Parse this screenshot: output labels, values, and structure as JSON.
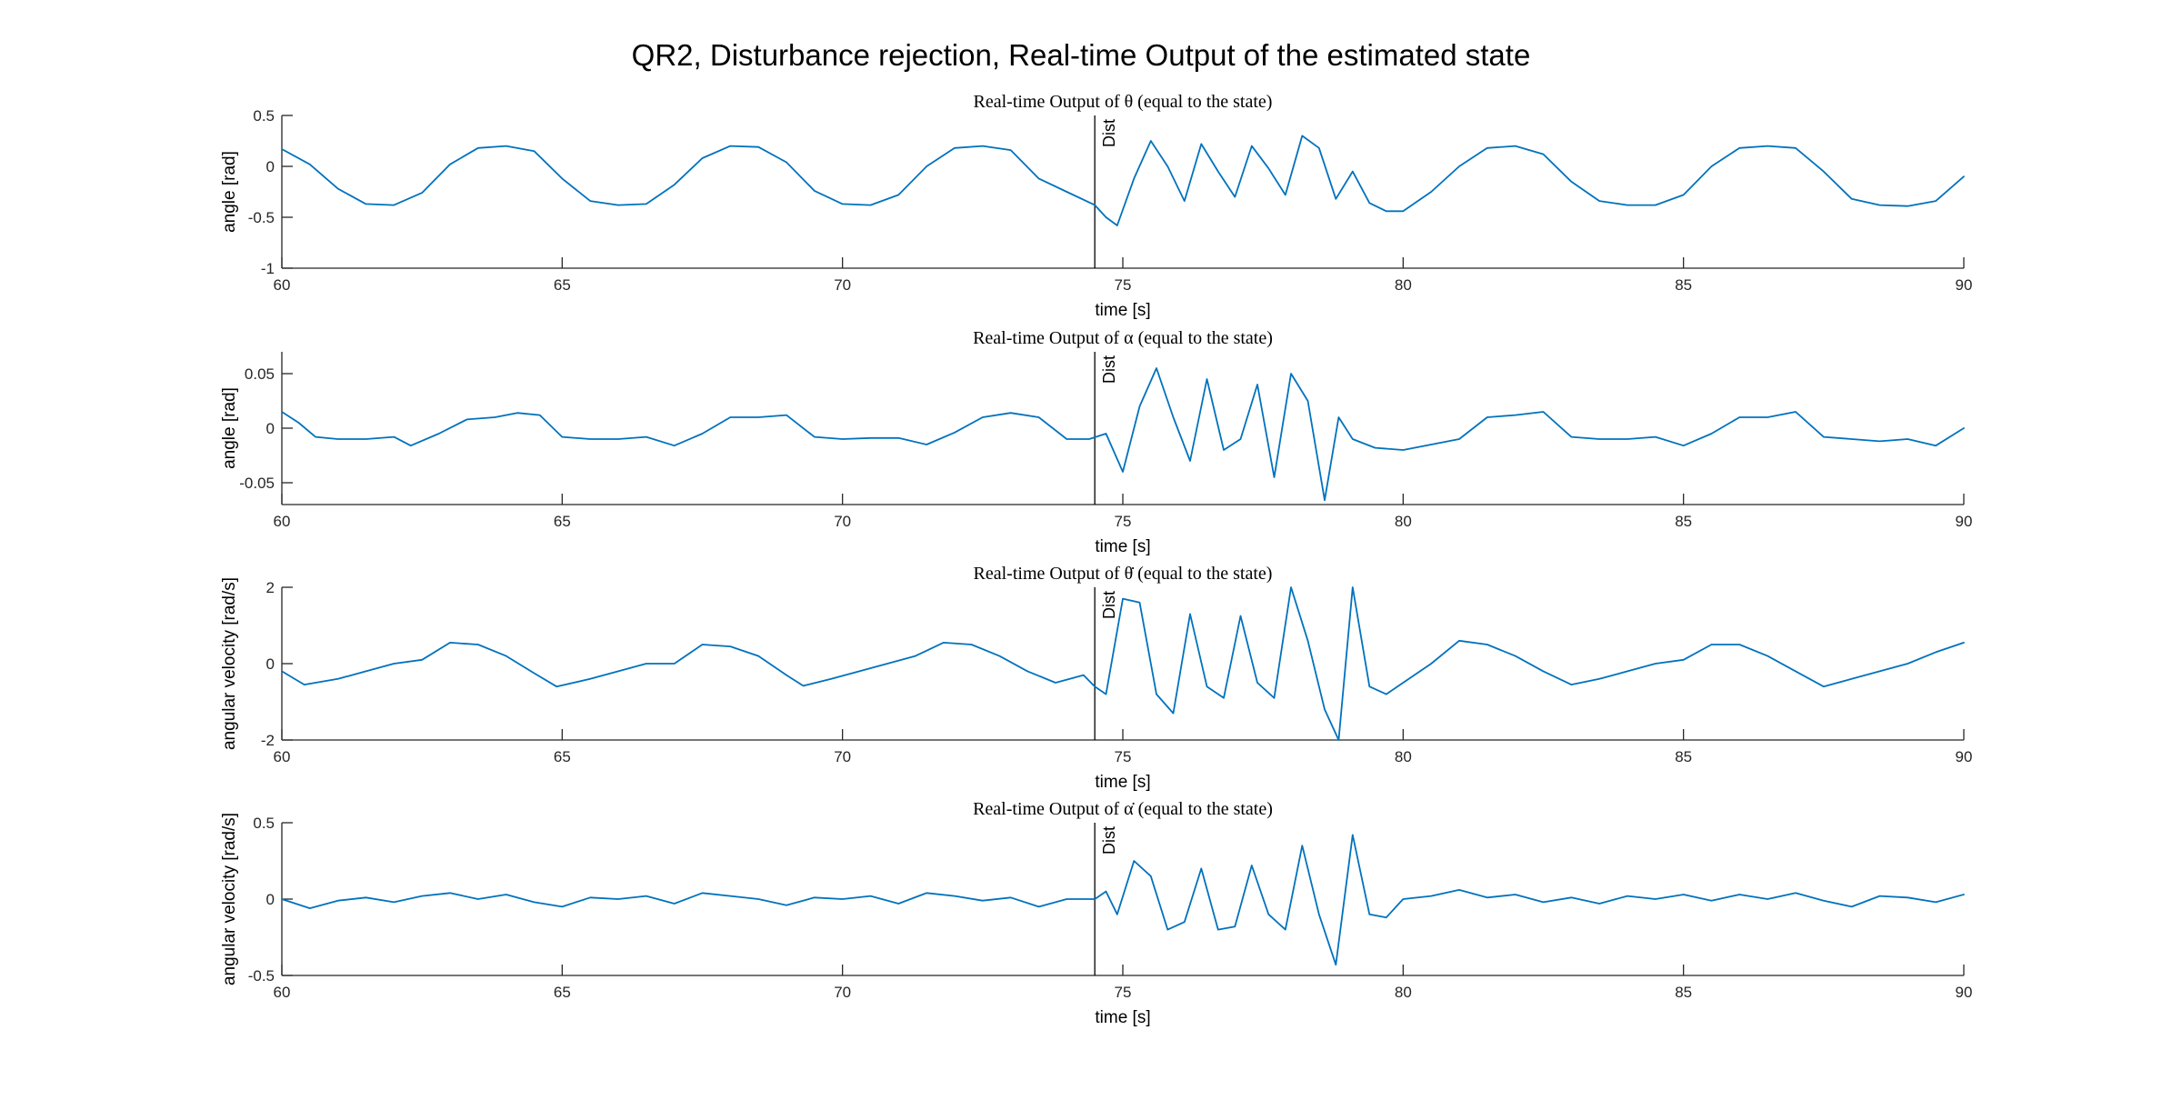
{
  "figure_title": "QR2, Disturbance rejection, Real-time Output of the estimated state",
  "colors": {
    "line": "#0072BD",
    "axis": "#262626",
    "marker": "#000000"
  },
  "chart_data": [
    {
      "type": "line",
      "title": "Real-time Output of θ (equal to the state)",
      "xlabel": "time [s]",
      "ylabel": "angle [rad]",
      "xlim": [
        60,
        90
      ],
      "ylim": [
        -1,
        0.5
      ],
      "xticks": [
        60,
        65,
        70,
        75,
        80,
        85,
        90
      ],
      "yticks": [
        -1,
        -0.5,
        0,
        0.5
      ],
      "ytick_labels": [
        "-1",
        "-0.5",
        "0",
        "0.5"
      ],
      "annotation": {
        "text": "Dist",
        "x": 74.5
      },
      "series": [
        {
          "x": [
            60,
            60.5,
            61,
            61.5,
            62,
            62.5,
            63,
            63.5,
            64,
            64.5,
            65,
            65.5,
            66,
            66.5,
            67,
            67.5,
            68,
            68.5,
            69,
            69.5,
            70,
            70.5,
            71,
            71.5,
            72,
            72.5,
            73,
            73.5,
            74,
            74.5,
            74.7,
            74.9,
            75.2,
            75.5,
            75.8,
            76.1,
            76.4,
            76.7,
            77,
            77.3,
            77.6,
            77.9,
            78.2,
            78.5,
            78.8,
            79.1,
            79.4,
            79.7,
            80,
            80.5,
            81,
            81.5,
            82,
            82.5,
            83,
            83.5,
            84,
            84.5,
            85,
            85.5,
            86,
            86.5,
            87,
            87.5,
            88,
            88.5,
            89,
            89.5,
            90
          ],
          "y": [
            0.17,
            0.02,
            -0.22,
            -0.37,
            -0.38,
            -0.26,
            0.02,
            0.18,
            0.2,
            0.15,
            -0.12,
            -0.34,
            -0.38,
            -0.37,
            -0.18,
            0.08,
            0.2,
            0.19,
            0.04,
            -0.24,
            -0.37,
            -0.38,
            -0.28,
            0.0,
            0.18,
            0.2,
            0.16,
            -0.12,
            -0.25,
            -0.38,
            -0.5,
            -0.58,
            -0.12,
            0.25,
            0.0,
            -0.34,
            0.22,
            -0.05,
            -0.3,
            0.2,
            -0.02,
            -0.28,
            0.3,
            0.18,
            -0.32,
            -0.05,
            -0.36,
            -0.44,
            -0.44,
            -0.25,
            0.0,
            0.18,
            0.2,
            0.12,
            -0.15,
            -0.34,
            -0.38,
            -0.38,
            -0.28,
            0.0,
            0.18,
            0.2,
            0.18,
            -0.05,
            -0.32,
            -0.38,
            -0.39,
            -0.34,
            -0.1
          ]
        }
      ]
    },
    {
      "type": "line",
      "title": "Real-time Output of α (equal to the state)",
      "xlabel": "time [s]",
      "ylabel": "angle [rad]",
      "xlim": [
        60,
        90
      ],
      "ylim": [
        -0.07,
        0.07
      ],
      "xticks": [
        60,
        65,
        70,
        75,
        80,
        85,
        90
      ],
      "yticks": [
        -0.05,
        0,
        0.05
      ],
      "ytick_labels": [
        "-0.05",
        "0",
        "0.05"
      ],
      "annotation": {
        "text": "Dist",
        "x": 74.5
      },
      "series": [
        {
          "x": [
            60,
            60.3,
            60.6,
            61,
            61.5,
            62,
            62.3,
            62.8,
            63.3,
            63.8,
            64.2,
            64.6,
            65,
            65.5,
            66,
            66.5,
            67,
            67.5,
            68,
            68.5,
            69,
            69.5,
            70,
            70.5,
            71,
            71.5,
            72,
            72.5,
            73,
            73.5,
            74,
            74.4,
            74.7,
            75,
            75.3,
            75.6,
            75.9,
            76.2,
            76.5,
            76.8,
            77.1,
            77.4,
            77.7,
            78,
            78.3,
            78.6,
            78.85,
            79.1,
            79.5,
            80,
            80.5,
            81,
            81.5,
            82,
            82.5,
            83,
            83.5,
            84,
            84.5,
            85,
            85.5,
            86,
            86.5,
            87,
            87.5,
            88,
            88.5,
            89,
            89.5,
            90
          ],
          "y": [
            0.015,
            0.005,
            -0.008,
            -0.01,
            -0.01,
            -0.008,
            -0.016,
            -0.005,
            0.008,
            0.01,
            0.014,
            0.012,
            -0.008,
            -0.01,
            -0.01,
            -0.008,
            -0.016,
            -0.005,
            0.01,
            0.01,
            0.012,
            -0.008,
            -0.01,
            -0.009,
            -0.009,
            -0.015,
            -0.004,
            0.01,
            0.014,
            0.01,
            -0.01,
            -0.01,
            -0.005,
            -0.04,
            0.02,
            0.055,
            0.01,
            -0.03,
            0.045,
            -0.02,
            -0.01,
            0.04,
            -0.045,
            0.05,
            0.025,
            -0.066,
            0.01,
            -0.01,
            -0.018,
            -0.02,
            -0.015,
            -0.01,
            0.01,
            0.012,
            0.015,
            -0.008,
            -0.01,
            -0.01,
            -0.008,
            -0.016,
            -0.005,
            0.01,
            0.01,
            0.015,
            -0.008,
            -0.01,
            -0.012,
            -0.01,
            -0.016,
            0.0
          ]
        }
      ]
    },
    {
      "type": "line",
      "title": "Real-time Output of θ̇ (equal to the state)",
      "xlabel": "time [s]",
      "ylabel": "angular velocity [rad/s]",
      "xlim": [
        60,
        90
      ],
      "ylim": [
        -2,
        2
      ],
      "xticks": [
        60,
        65,
        70,
        75,
        80,
        85,
        90
      ],
      "yticks": [
        -2,
        0,
        2
      ],
      "ytick_labels": [
        "-2",
        "0",
        "2"
      ],
      "annotation": {
        "text": "Dist",
        "x": 74.5
      },
      "series": [
        {
          "x": [
            60,
            60.4,
            61,
            61.5,
            62,
            62.5,
            63,
            63.5,
            64,
            64.5,
            64.9,
            65.5,
            66,
            66.5,
            67,
            67.5,
            68,
            68.5,
            69,
            69.3,
            69.8,
            70.3,
            70.8,
            71.3,
            71.8,
            72.3,
            72.8,
            73.3,
            73.8,
            74.3,
            74.5,
            74.7,
            75,
            75.3,
            75.6,
            75.9,
            76.2,
            76.5,
            76.8,
            77.1,
            77.4,
            77.7,
            78,
            78.3,
            78.6,
            78.85,
            79.1,
            79.4,
            79.7,
            80,
            80.5,
            81,
            81.5,
            82,
            82.5,
            83,
            83.5,
            84,
            84.5,
            85,
            85.5,
            86,
            86.5,
            87,
            87.5,
            88,
            88.5,
            89,
            89.5,
            90
          ],
          "y": [
            -0.2,
            -0.55,
            -0.4,
            -0.2,
            0.0,
            0.1,
            0.55,
            0.5,
            0.2,
            -0.25,
            -0.6,
            -0.4,
            -0.2,
            0.0,
            0.0,
            0.5,
            0.45,
            0.2,
            -0.3,
            -0.58,
            -0.4,
            -0.2,
            0.0,
            0.2,
            0.55,
            0.5,
            0.2,
            -0.2,
            -0.5,
            -0.3,
            -0.6,
            -0.8,
            1.7,
            1.6,
            -0.8,
            -1.3,
            1.3,
            -0.6,
            -0.9,
            1.25,
            -0.5,
            -0.9,
            2.0,
            0.6,
            -1.2,
            -2.0,
            2.0,
            -0.6,
            -0.8,
            -0.5,
            0.0,
            0.6,
            0.5,
            0.2,
            -0.2,
            -0.55,
            -0.4,
            -0.2,
            0.0,
            0.1,
            0.5,
            0.5,
            0.2,
            -0.2,
            -0.6,
            -0.4,
            -0.2,
            0.0,
            0.3,
            0.55
          ]
        }
      ]
    },
    {
      "type": "line",
      "title": "Real-time Output of α̇ (equal to the state)",
      "xlabel": "time [s]",
      "ylabel": "angular velocity [rad/s]",
      "xlim": [
        60,
        90
      ],
      "ylim": [
        -0.5,
        0.5
      ],
      "xticks": [
        60,
        65,
        70,
        75,
        80,
        85,
        90
      ],
      "yticks": [
        -0.5,
        0,
        0.5
      ],
      "ytick_labels": [
        "-0.5",
        "0",
        "0.5"
      ],
      "annotation": {
        "text": "Dist",
        "x": 74.5
      },
      "series": [
        {
          "x": [
            60,
            60.5,
            61,
            61.5,
            62,
            62.5,
            63,
            63.5,
            64,
            64.5,
            65,
            65.5,
            66,
            66.5,
            67,
            67.5,
            68,
            68.5,
            69,
            69.5,
            70,
            70.5,
            71,
            71.5,
            72,
            72.5,
            73,
            73.5,
            74,
            74.5,
            74.7,
            74.9,
            75.2,
            75.5,
            75.8,
            76.1,
            76.4,
            76.7,
            77,
            77.3,
            77.6,
            77.9,
            78.2,
            78.5,
            78.8,
            79.1,
            79.4,
            79.7,
            80,
            80.5,
            81,
            81.5,
            82,
            82.5,
            83,
            83.5,
            84,
            84.5,
            85,
            85.5,
            86,
            86.5,
            87,
            87.5,
            88,
            88.5,
            89,
            89.5,
            90
          ],
          "y": [
            0.0,
            -0.06,
            -0.01,
            0.01,
            -0.02,
            0.02,
            0.04,
            0.0,
            0.03,
            -0.02,
            -0.05,
            0.01,
            0.0,
            0.02,
            -0.03,
            0.04,
            0.02,
            0.0,
            -0.04,
            0.01,
            0.0,
            0.02,
            -0.03,
            0.04,
            0.02,
            -0.01,
            0.01,
            -0.05,
            0.0,
            0.0,
            0.05,
            -0.1,
            0.25,
            0.15,
            -0.2,
            -0.15,
            0.2,
            -0.2,
            -0.18,
            0.22,
            -0.1,
            -0.2,
            0.35,
            -0.1,
            -0.43,
            0.42,
            -0.1,
            -0.12,
            0.0,
            0.02,
            0.06,
            0.01,
            0.03,
            -0.02,
            0.01,
            -0.03,
            0.02,
            0.0,
            0.03,
            -0.01,
            0.03,
            0.0,
            0.04,
            -0.01,
            -0.05,
            0.02,
            0.01,
            -0.02,
            0.03
          ]
        }
      ]
    }
  ]
}
